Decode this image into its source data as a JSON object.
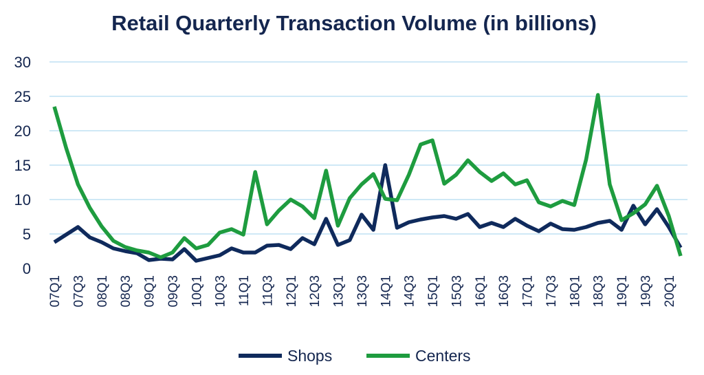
{
  "chart_data": {
    "type": "line",
    "title": "Retail Quarterly Transaction Volume (in billions)",
    "xlabel": "",
    "ylabel": "",
    "ylim": [
      0,
      30
    ],
    "yticks": [
      0,
      5,
      10,
      15,
      20,
      25,
      30
    ],
    "grid": true,
    "legend_position": "bottom",
    "categories": [
      "07Q1",
      "07Q2",
      "07Q3",
      "07Q4",
      "08Q1",
      "08Q2",
      "08Q3",
      "08Q4",
      "09Q1",
      "09Q2",
      "09Q3",
      "09Q4",
      "10Q1",
      "10Q2",
      "10Q3",
      "10Q4",
      "11Q1",
      "11Q2",
      "11Q3",
      "11Q4",
      "12Q1",
      "12Q2",
      "12Q3",
      "12Q4",
      "13Q1",
      "13Q2",
      "13Q3",
      "13Q4",
      "14Q1",
      "14Q2",
      "14Q3",
      "14Q4",
      "15Q1",
      "15Q2",
      "15Q3",
      "15Q4",
      "16Q1",
      "16Q2",
      "16Q3",
      "16Q4",
      "17Q1",
      "17Q2",
      "17Q3",
      "17Q4",
      "18Q1",
      "18Q2",
      "18Q3",
      "18Q4",
      "19Q1",
      "19Q2",
      "19Q3",
      "19Q4",
      "20Q1",
      "20Q2"
    ],
    "xtick_labels": [
      "07Q1",
      "07Q3",
      "08Q1",
      "08Q3",
      "09Q1",
      "09Q3",
      "10Q1",
      "10Q3",
      "11Q1",
      "11Q3",
      "12Q1",
      "12Q3",
      "13Q1",
      "13Q3",
      "14Q1",
      "14Q3",
      "15Q1",
      "15Q3",
      "16Q1",
      "16Q3",
      "17Q1",
      "17Q3",
      "18Q1",
      "18Q3",
      "19Q1",
      "19Q3",
      "20Q1"
    ],
    "series": [
      {
        "name": "Shops",
        "color": "#0f2a5c",
        "values": [
          3.8,
          4.9,
          6.0,
          4.5,
          3.8,
          2.9,
          2.5,
          2.2,
          1.2,
          1.4,
          1.3,
          2.8,
          1.1,
          1.5,
          1.9,
          2.9,
          2.3,
          2.3,
          3.3,
          3.4,
          2.8,
          4.4,
          3.5,
          7.2,
          3.4,
          4.1,
          7.8,
          5.6,
          15.0,
          5.9,
          6.7,
          7.1,
          7.4,
          7.6,
          7.2,
          7.9,
          6.0,
          6.6,
          6.0,
          7.2,
          6.2,
          5.4,
          6.5,
          5.7,
          5.6,
          6.0,
          6.6,
          6.9,
          5.6,
          9.1,
          6.4,
          8.6,
          6.0,
          3.0
        ]
      },
      {
        "name": "Centers",
        "color": "#1e9c3f",
        "values": [
          23.5,
          17.5,
          12.2,
          8.8,
          6.1,
          4.0,
          3.1,
          2.6,
          2.3,
          1.6,
          2.3,
          4.4,
          2.9,
          3.4,
          5.2,
          5.7,
          4.9,
          14.0,
          6.4,
          8.4,
          10.0,
          9.0,
          7.3,
          14.2,
          6.2,
          10.2,
          12.2,
          13.7,
          10.1,
          9.9,
          13.6,
          18.0,
          18.6,
          12.3,
          13.6,
          15.7,
          14.0,
          12.7,
          13.8,
          12.2,
          12.8,
          9.6,
          9.0,
          9.8,
          9.2,
          15.8,
          25.2,
          12.2,
          7.0,
          8.0,
          9.3,
          12.0,
          7.6,
          1.8
        ]
      }
    ]
  }
}
